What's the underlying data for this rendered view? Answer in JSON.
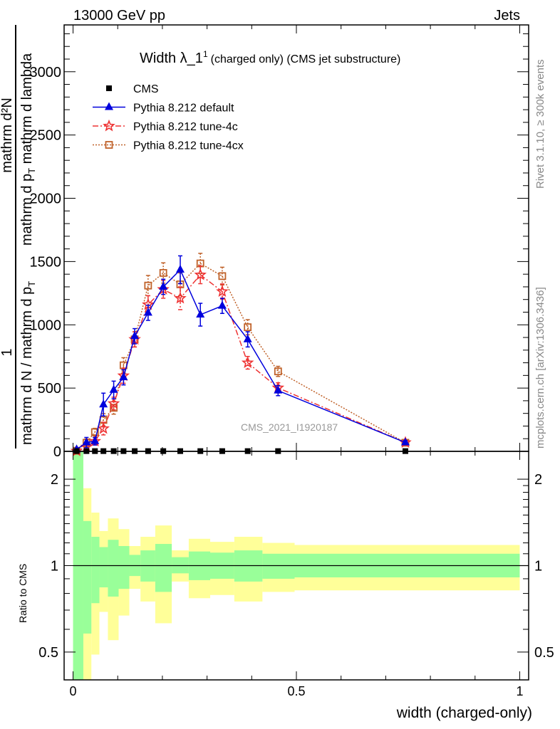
{
  "header": {
    "left": "13000 GeV pp",
    "right": "Jets"
  },
  "side_text": {
    "rivet": "Rivet 3.1.10, ≥ 300k events",
    "mcplots": "mcplots.cern.ch [arXiv:1306.3436]"
  },
  "chart_data": {
    "type": "line",
    "title_main": "Width λ_1",
    "title_sup": "1",
    "title_rest": "(charged only) (CMS jet substructure)",
    "watermark": "CMS_2021_I1920187",
    "xlabel": "width (charged-only)",
    "ylabel": {
      "frac1_num": "1",
      "frac1_den": "mathrm d N / mathrm d p",
      "frac1_den_sub": "T",
      "frac2_num": "mathrm d²N",
      "frac2_den_a": "mathrm d p",
      "frac2_den_sub": "T",
      "frac2_den_b": " mathrm d lambda"
    },
    "ratio_ylabel": "Ratio to CMS",
    "xlim": [
      -0.02,
      1.02
    ],
    "ylim": [
      0,
      3370
    ],
    "ratio_ylim": [
      0.4,
      2.5
    ],
    "ratio_log": true,
    "xticks": [
      {
        "v": 0,
        "label": "0"
      },
      {
        "v": 0.5,
        "label": "0.5"
      },
      {
        "v": 1,
        "label": "1"
      }
    ],
    "yticks": [
      {
        "v": 0,
        "label": "0"
      },
      {
        "v": 500,
        "label": "500"
      },
      {
        "v": 1000,
        "label": "1000"
      },
      {
        "v": 1500,
        "label": "1500"
      },
      {
        "v": 2000,
        "label": "2000"
      },
      {
        "v": 2500,
        "label": "2500"
      },
      {
        "v": 3000,
        "label": "3000"
      }
    ],
    "ratio_yticks": [
      {
        "v": 0.5,
        "label": "0.5"
      },
      {
        "v": 1,
        "label": "1"
      },
      {
        "v": 2,
        "label": "2"
      }
    ],
    "bin_edges": [
      0,
      0.023,
      0.041,
      0.059,
      0.078,
      0.102,
      0.126,
      0.151,
      0.184,
      0.221,
      0.259,
      0.307,
      0.361,
      0.424,
      0.496,
      1.0
    ],
    "x": [
      0.008,
      0.03,
      0.049,
      0.068,
      0.091,
      0.113,
      0.138,
      0.168,
      0.202,
      0.24,
      0.285,
      0.334,
      0.391,
      0.459,
      0.744
    ],
    "series": [
      {
        "name": "CMS",
        "color": "#000000",
        "marker": "square-filled",
        "values": [
          2,
          2,
          2,
          2,
          2,
          2,
          2,
          2,
          2,
          2,
          2,
          2,
          2,
          2,
          2
        ],
        "errors": [
          0,
          0,
          0,
          0,
          0,
          0,
          0,
          0,
          0,
          0,
          0,
          0,
          0,
          0,
          0
        ]
      },
      {
        "name": "Pythia 8.212 default",
        "color": "#0000dd",
        "marker": "triangle",
        "line": "solid",
        "values": [
          15,
          70,
          80,
          370,
          485,
          585,
          910,
          1095,
          1300,
          1435,
          1080,
          1150,
          885,
          480,
          70
        ],
        "errors": [
          10,
          40,
          30,
          90,
          70,
          60,
          60,
          60,
          60,
          110,
          90,
          60,
          60,
          40,
          15
        ]
      },
      {
        "name": "Pythia 8.212 tune-4c",
        "color": "#ee3333",
        "marker": "star",
        "line": "dashdot",
        "values": [
          3,
          35,
          80,
          180,
          378,
          598,
          885,
          1160,
          1280,
          1210,
          1395,
          1263,
          700,
          502,
          70
        ],
        "errors": [
          5,
          30,
          30,
          50,
          50,
          60,
          60,
          70,
          70,
          90,
          70,
          60,
          50,
          40,
          15
        ]
      },
      {
        "name": "Pythia 8.212 tune-4cx",
        "color": "#c0622a",
        "marker": "square-open",
        "line": "dotted",
        "values": [
          5,
          68,
          152,
          248,
          344,
          680,
          885,
          1310,
          1410,
          1320,
          1485,
          1385,
          981,
          632,
          68
        ],
        "errors": [
          5,
          30,
          30,
          50,
          50,
          60,
          60,
          80,
          80,
          90,
          80,
          70,
          60,
          40,
          15
        ]
      }
    ],
    "ratio_bands": {
      "stat_color": "#99ff99",
      "total_color": "#ffff99",
      "stat_lo": [
        0.3,
        0.58,
        0.74,
        0.84,
        0.78,
        0.83,
        0.92,
        0.88,
        0.81,
        0.94,
        0.89,
        0.9,
        0.88,
        0.9,
        0.91
      ],
      "stat_hi": [
        3.0,
        1.43,
        1.26,
        1.16,
        1.23,
        1.17,
        1.09,
        1.13,
        1.19,
        1.07,
        1.12,
        1.11,
        1.13,
        1.1,
        1.1
      ],
      "total_lo": [
        0.3,
        0.3,
        0.49,
        0.69,
        0.55,
        0.67,
        0.83,
        0.75,
        0.63,
        0.88,
        0.77,
        0.79,
        0.75,
        0.81,
        0.82
      ],
      "total_hi": [
        3.0,
        1.86,
        1.53,
        1.32,
        1.46,
        1.34,
        1.17,
        1.26,
        1.38,
        1.13,
        1.24,
        1.21,
        1.26,
        1.2,
        1.18
      ]
    }
  }
}
